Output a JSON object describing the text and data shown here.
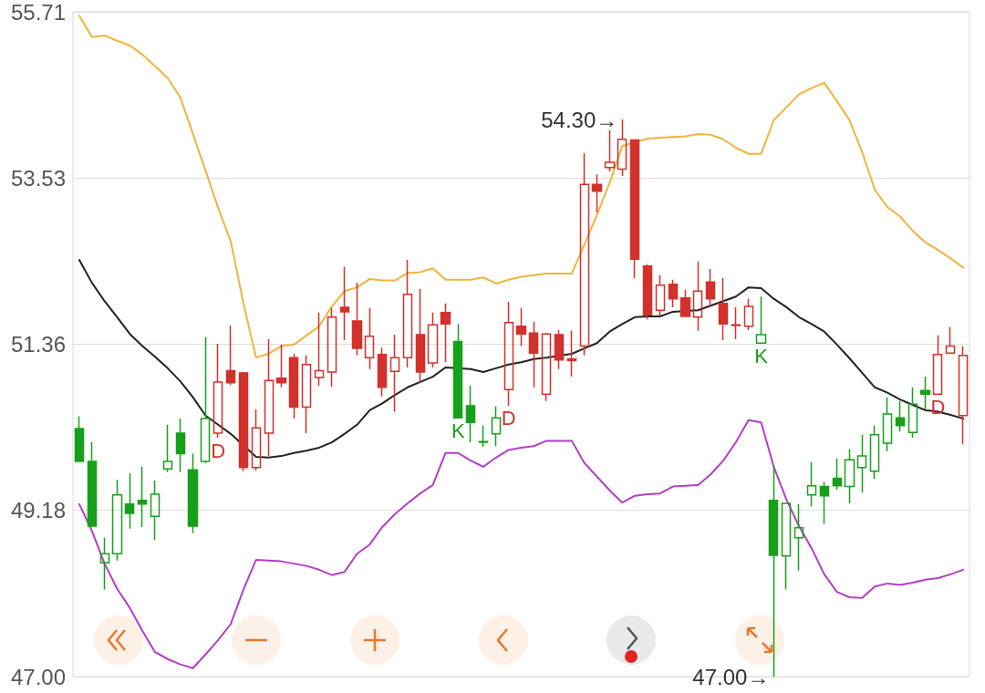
{
  "chart_data": {
    "type": "candlestick",
    "categories": [
      null,
      null,
      null,
      null,
      null,
      null,
      null,
      null,
      null,
      null,
      null,
      null,
      null,
      null,
      null,
      null,
      null,
      null,
      null,
      null,
      null,
      null,
      null,
      null,
      null,
      null,
      null,
      null,
      null,
      null,
      null,
      null,
      null,
      null,
      null,
      null,
      null,
      null,
      null,
      null,
      null,
      null,
      null,
      null,
      null,
      null,
      null,
      null,
      null,
      null,
      null,
      null,
      null,
      null,
      null,
      null,
      null,
      null,
      null,
      null,
      null,
      null,
      null,
      null,
      null,
      null,
      null,
      null,
      null,
      null,
      null
    ],
    "series": [
      {
        "color": "#17a11b",
        "ohlc": [
          [
            50.25,
            50.41,
            49.82,
            49.82
          ],
          [
            49.82,
            50.07,
            48.96,
            48.97
          ],
          [
            48.49,
            48.82,
            48.14,
            48.61
          ],
          [
            48.61,
            49.58,
            48.52,
            49.38
          ],
          [
            49.26,
            49.66,
            48.94,
            49.14
          ],
          [
            49.31,
            49.75,
            48.96,
            49.26
          ],
          [
            49.1,
            49.57,
            48.79,
            49.39
          ],
          [
            49.72,
            50.3,
            49.68,
            49.82
          ],
          [
            50.19,
            50.38,
            49.68,
            49.92
          ],
          [
            49.71,
            49.92,
            48.88,
            48.97
          ],
          [
            49.82,
            51.45,
            49.8,
            50.38
          ],
          null,
          null,
          null,
          null,
          null,
          null,
          null,
          null,
          null,
          null,
          null,
          null,
          null,
          null,
          null,
          null,
          null,
          null,
          null,
          [
            51.39,
            51.62,
            50.39,
            50.39
          ],
          [
            50.55,
            50.81,
            50.07,
            50.33
          ],
          [
            50.08,
            50.29,
            50.01,
            50.07
          ],
          [
            50.18,
            50.54,
            50.02,
            50.39
          ],
          null,
          null,
          null,
          null,
          null,
          null,
          null,
          null,
          null,
          null,
          null,
          null,
          null,
          null,
          null,
          null,
          null,
          null,
          null,
          null,
          [
            51.37,
            51.98,
            51.37,
            51.48
          ],
          [
            49.31,
            49.77,
            47.0,
            48.59
          ],
          [
            48.58,
            49.28,
            48.14,
            49.27
          ],
          [
            48.82,
            49.26,
            48.39,
            48.95
          ],
          [
            49.38,
            49.81,
            49.23,
            49.5
          ],
          [
            49.49,
            49.55,
            49.0,
            49.37
          ],
          [
            49.6,
            49.86,
            49.45,
            49.5
          ],
          [
            49.49,
            49.98,
            49.27,
            49.84
          ],
          [
            49.74,
            50.17,
            49.41,
            49.89
          ],
          [
            49.69,
            50.29,
            49.59,
            50.17
          ],
          [
            50.06,
            50.66,
            49.95,
            50.44
          ],
          [
            50.39,
            50.61,
            50.21,
            50.29
          ],
          [
            50.2,
            50.79,
            50.13,
            50.57
          ],
          [
            50.75,
            50.93,
            50.5,
            50.7
          ],
          null,
          null,
          null
        ],
        "value_labels": [
          null,
          null,
          null,
          null,
          null,
          null,
          null,
          null,
          null,
          null,
          null,
          null,
          null,
          null,
          null,
          null,
          null,
          null,
          null,
          null,
          null,
          null,
          null,
          null,
          null,
          null,
          null,
          null,
          null,
          null,
          "K",
          null,
          null,
          null,
          null,
          null,
          null,
          null,
          null,
          null,
          null,
          null,
          null,
          null,
          null,
          null,
          null,
          null,
          null,
          null,
          null,
          null,
          null,
          null,
          "K",
          null,
          null,
          null,
          null,
          null,
          null,
          null,
          null,
          null,
          null,
          null,
          null,
          null,
          null,
          null,
          null
        ]
      },
      {
        "color": "#d2312c",
        "ohlc": [
          null,
          null,
          null,
          null,
          null,
          null,
          null,
          null,
          null,
          null,
          null,
          [
            50.19,
            51.36,
            50.13,
            50.86
          ],
          [
            51.01,
            51.6,
            50.82,
            50.85
          ],
          [
            50.98,
            50.99,
            49.69,
            49.74
          ],
          [
            49.74,
            50.5,
            49.7,
            50.26
          ],
          [
            50.19,
            51.42,
            49.89,
            50.88
          ],
          [
            50.91,
            51.35,
            50.79,
            50.85
          ],
          [
            51.18,
            51.23,
            50.38,
            50.53
          ],
          [
            50.53,
            51.21,
            50.19,
            51.09
          ],
          [
            50.92,
            51.77,
            50.81,
            51.01
          ],
          [
            50.99,
            51.83,
            50.8,
            51.71
          ],
          [
            51.84,
            52.37,
            51.41,
            51.78
          ],
          [
            51.66,
            52.16,
            51.21,
            51.3
          ],
          [
            51.18,
            51.83,
            51.03,
            51.46
          ],
          [
            51.22,
            51.31,
            50.67,
            50.79
          ],
          [
            51.0,
            51.48,
            50.47,
            51.18
          ],
          [
            51.18,
            52.46,
            51.05,
            52.01
          ],
          [
            51.48,
            52.08,
            50.85,
            50.99
          ],
          [
            51.11,
            51.77,
            51.05,
            51.61
          ],
          [
            51.77,
            51.89,
            51.12,
            51.62
          ],
          null,
          null,
          null,
          null,
          [
            50.76,
            51.91,
            50.55,
            51.64
          ],
          [
            51.59,
            51.83,
            51.33,
            51.49
          ],
          [
            51.5,
            51.65,
            50.79,
            51.24
          ],
          [
            50.7,
            51.5,
            50.61,
            51.49
          ],
          [
            51.48,
            51.54,
            51.03,
            51.15
          ],
          [
            51.16,
            51.53,
            50.93,
            51.14
          ],
          [
            51.33,
            53.86,
            51.21,
            53.45
          ],
          [
            53.45,
            53.58,
            53.08,
            53.36
          ],
          [
            53.67,
            54.16,
            53.62,
            53.74
          ],
          [
            53.65,
            54.3,
            53.56,
            54.04
          ],
          [
            54.03,
            54.03,
            52.22,
            52.47
          ],
          [
            52.38,
            52.4,
            51.68,
            51.74
          ],
          [
            51.8,
            52.26,
            51.72,
            52.13
          ],
          [
            52.14,
            52.2,
            51.84,
            51.95
          ],
          [
            51.96,
            52.07,
            51.71,
            51.72
          ],
          [
            51.71,
            52.44,
            51.53,
            52.05
          ],
          [
            52.17,
            52.34,
            51.84,
            51.95
          ],
          [
            51.89,
            52.22,
            51.41,
            51.62
          ],
          [
            51.61,
            51.84,
            51.42,
            51.6
          ],
          [
            51.59,
            51.95,
            51.54,
            51.85
          ],
          null,
          null,
          null,
          null,
          null,
          null,
          null,
          null,
          null,
          null,
          null,
          null,
          null,
          null,
          [
            50.7,
            51.47,
            50.7,
            51.22
          ],
          [
            51.24,
            51.58,
            51.24,
            51.33
          ],
          [
            50.42,
            51.33,
            50.05,
            51.21
          ]
        ],
        "value_labels": [
          null,
          null,
          null,
          null,
          null,
          null,
          null,
          null,
          null,
          null,
          null,
          "D",
          null,
          null,
          null,
          null,
          null,
          null,
          null,
          null,
          null,
          null,
          null,
          null,
          null,
          null,
          null,
          null,
          null,
          null,
          null,
          null,
          null,
          null,
          "D",
          null,
          null,
          null,
          null,
          null,
          null,
          null,
          null,
          null,
          null,
          null,
          null,
          null,
          null,
          null,
          null,
          null,
          null,
          null,
          null,
          null,
          null,
          null,
          null,
          null,
          null,
          null,
          null,
          null,
          null,
          null,
          null,
          null,
          "D",
          null,
          null
        ]
      },
      {
        "type": "line",
        "color": "#f0b43c",
        "values": [
          55.66,
          55.38,
          55.4,
          55.33,
          55.27,
          55.15,
          55.0,
          54.84,
          54.59,
          54.11,
          53.63,
          53.14,
          52.7,
          51.89,
          51.18,
          51.23,
          51.33,
          51.35,
          51.47,
          51.59,
          51.85,
          52.05,
          52.1,
          52.21,
          52.19,
          52.19,
          52.29,
          52.3,
          52.35,
          52.2,
          52.2,
          52.2,
          52.23,
          52.15,
          52.2,
          52.24,
          52.26,
          52.28,
          52.28,
          52.28,
          52.66,
          53.05,
          53.47,
          53.95,
          null,
          54.05,
          54.06,
          54.07,
          54.08,
          54.11,
          54.1,
          54.04,
          53.93,
          53.85,
          53.85,
          54.29,
          54.46,
          54.63,
          54.71,
          54.78,
          54.54,
          54.29,
          53.87,
          53.38,
          53.15,
          53.03,
          52.84,
          52.69,
          52.59,
          52.48,
          52.36
        ]
      },
      {
        "type": "line",
        "color": "#222222",
        "values": [
          52.46,
          52.16,
          51.92,
          51.71,
          51.49,
          51.33,
          51.19,
          51.04,
          50.87,
          50.66,
          50.42,
          50.3,
          50.18,
          null,
          49.88,
          49.87,
          49.89,
          49.93,
          49.96,
          50.0,
          50.07,
          50.18,
          50.3,
          50.49,
          50.58,
          50.69,
          50.79,
          50.86,
          50.93,
          51.05,
          null,
          51.03,
          50.99,
          51.04,
          51.09,
          51.12,
          51.16,
          51.18,
          null,
          51.23,
          51.3,
          51.37,
          51.52,
          51.62,
          51.71,
          51.72,
          51.72,
          51.78,
          null,
          51.8,
          51.86,
          51.92,
          51.98,
          52.1,
          52.09,
          51.95,
          51.84,
          51.71,
          51.62,
          51.52,
          51.35,
          51.17,
          50.98,
          50.79,
          50.72,
          50.63,
          50.56,
          50.49,
          50.47,
          50.43,
          50.38
        ]
      },
      {
        "type": "line",
        "color": "#b23fc6",
        "values": [
          49.26,
          48.91,
          48.48,
          48.15,
          47.9,
          47.6,
          47.32,
          47.23,
          47.16,
          47.11,
          47.29,
          47.48,
          47.69,
          48.14,
          48.53,
          48.52,
          48.51,
          48.48,
          48.45,
          48.4,
          48.33,
          48.37,
          48.61,
          48.73,
          48.96,
          49.13,
          49.27,
          49.4,
          49.51,
          49.93,
          49.93,
          49.83,
          49.75,
          49.87,
          49.97,
          50.0,
          50.02,
          50.09,
          50.09,
          50.09,
          49.8,
          49.62,
          49.44,
          49.28,
          49.37,
          49.39,
          49.4,
          49.49,
          49.5,
          49.51,
          49.65,
          49.83,
          50.07,
          50.36,
          50.33,
          49.75,
          49.32,
          48.97,
          48.68,
          48.34,
          48.11,
          48.04,
          48.03,
          48.18,
          48.22,
          48.2,
          48.23,
          48.27,
          48.29,
          48.34,
          48.4
        ]
      }
    ],
    "annotations": [
      "54.30→",
      "47.00→"
    ],
    "ylim": [
      47.0,
      55.71
    ],
    "yticks": [
      {
        "value": 47,
        "label": "47.00"
      },
      49.18,
      51.36,
      53.53,
      55.71
    ],
    "grid": "y",
    "tick_labels": "y",
    "marker": "none"
  }
}
